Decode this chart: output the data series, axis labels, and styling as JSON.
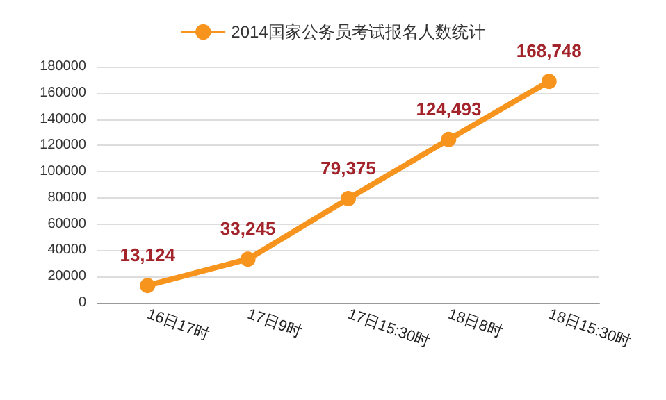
{
  "chart_data": {
    "type": "line",
    "categories": [
      "16日17时",
      "17日9时",
      "17日15:30时",
      "18日8时",
      "18日15:30时"
    ],
    "series": [
      {
        "name": "2014国家公务员考试报名人数统计",
        "color": "#f7941d",
        "values": [
          13124,
          33245,
          79375,
          124493,
          168748
        ],
        "value_labels": [
          "13,124",
          "33,245",
          "79,375",
          "124,493",
          "168,748"
        ]
      }
    ],
    "ylim": [
      0,
      180000
    ],
    "yticks": [
      0,
      20000,
      40000,
      60000,
      80000,
      100000,
      120000,
      140000,
      160000,
      180000
    ],
    "grid": "y",
    "legend": "top",
    "marker": "circle",
    "line_style": "solid"
  }
}
